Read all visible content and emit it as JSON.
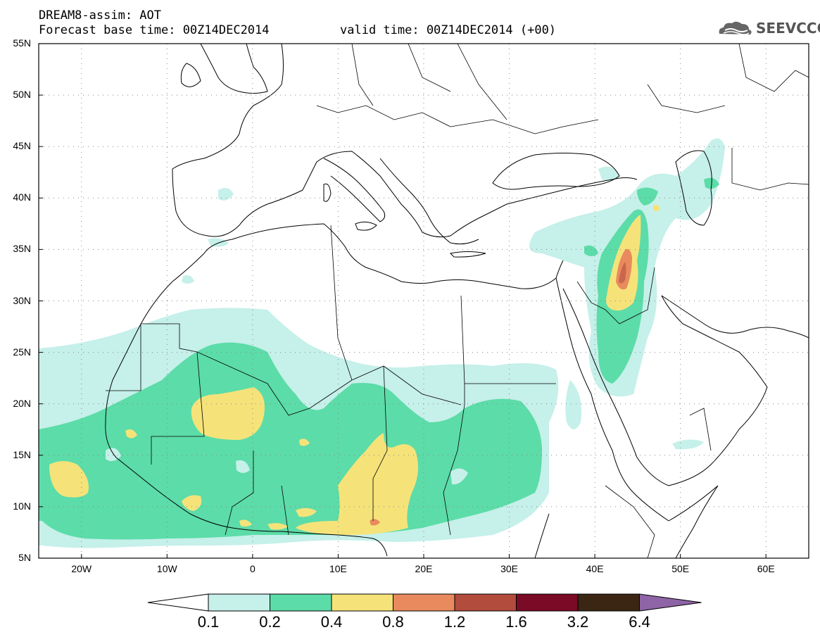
{
  "header": {
    "title": "DREAM8-assim: AOT",
    "base_time": "Forecast base time: 00Z14DEC2014",
    "valid_time": "valid time: 00Z14DEC2014 (+00)",
    "logo_text": "SEEVCCC"
  },
  "axes": {
    "lat_labels": [
      "55N",
      "50N",
      "45N",
      "40N",
      "35N",
      "30N",
      "25N",
      "20N",
      "15N",
      "10N",
      "5N"
    ],
    "lat_values": [
      55,
      50,
      45,
      40,
      35,
      30,
      25,
      20,
      15,
      10,
      5
    ],
    "lon_labels": [
      "20W",
      "10W",
      "0",
      "10E",
      "20E",
      "30E",
      "40E",
      "50E",
      "60E"
    ],
    "lon_values": [
      -20,
      -10,
      0,
      10,
      20,
      30,
      40,
      50,
      60
    ],
    "lon_range": [
      -25,
      65
    ],
    "lat_range": [
      5,
      55
    ],
    "grid": "dotted"
  },
  "colorbar": {
    "labels": [
      "0.1",
      "0.2",
      "0.4",
      "0.8",
      "1.2",
      "1.6",
      "3.2",
      "6.4"
    ],
    "colors": [
      "#c6f0ea",
      "#5cdca8",
      "#f5e37a",
      "#e88a5e",
      "#b24c3c",
      "#7a0a26",
      "#3b2614",
      "#8e64a6"
    ],
    "under_color": "#ffffff"
  },
  "colors": {
    "c1": "#c6f0ea",
    "c2": "#5cdca8",
    "c3": "#f5e37a",
    "c4": "#e88a5e",
    "c5": "#c9664d"
  }
}
